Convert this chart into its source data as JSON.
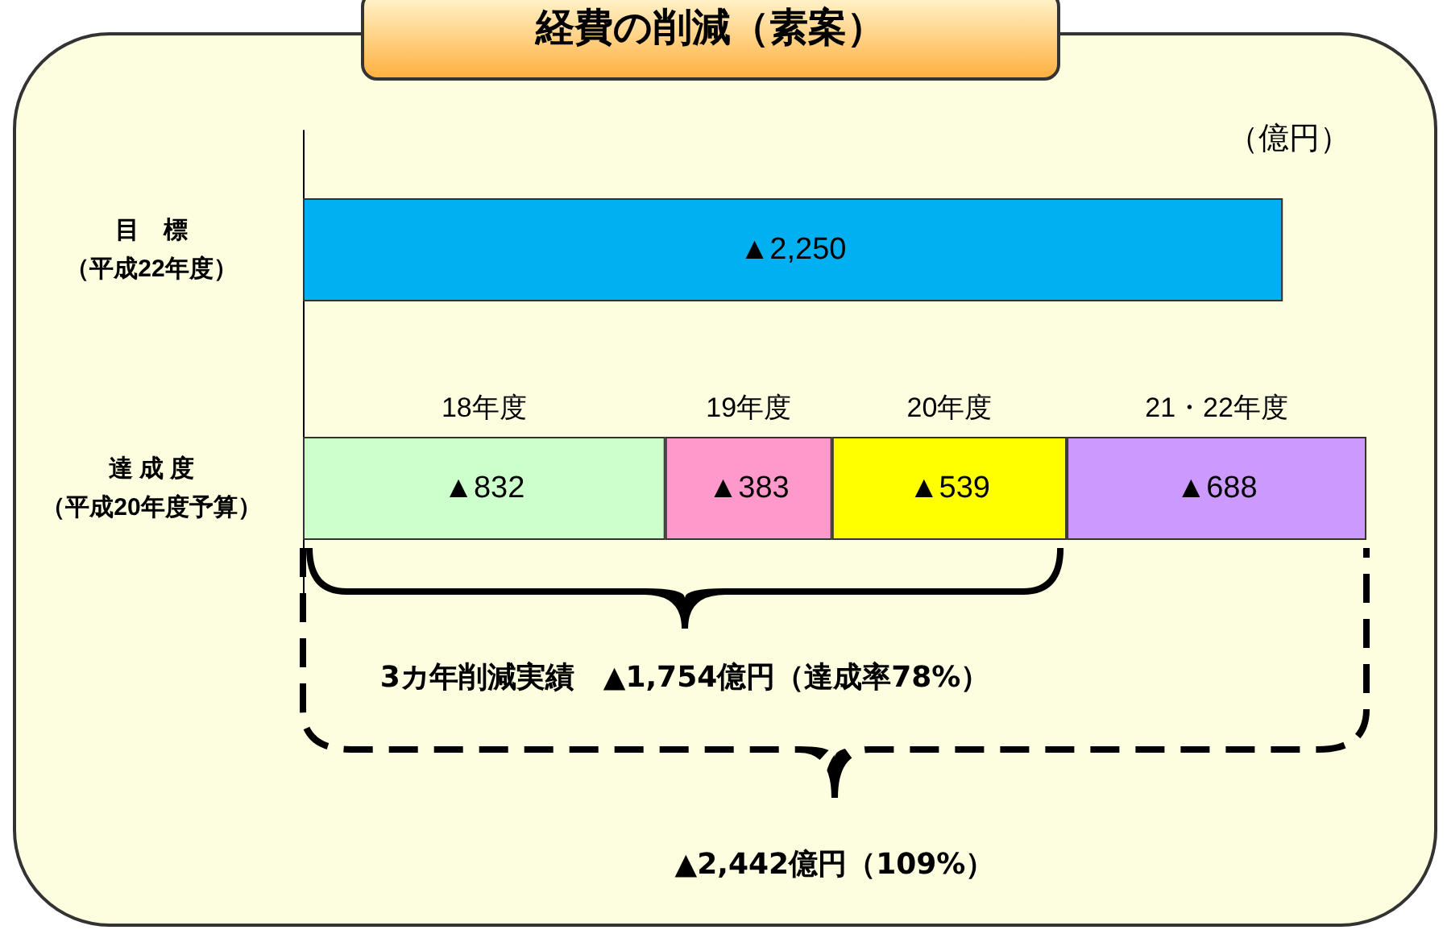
{
  "chart_data": {
    "type": "bar",
    "orientation": "horizontal",
    "stacked": true,
    "title": "経費の削減（素案）",
    "categories": [
      "目　標（平成22年度）",
      "達 成 度（平成20年度予算）"
    ],
    "series": [
      {
        "color": "#00b0f0",
        "values": [
          2250,
          null
        ],
        "value_labels": [
          "▲2,250",
          null
        ]
      },
      {
        "name": "18年度",
        "color": "#ccffcc",
        "values": [
          null,
          832
        ],
        "value_labels": [
          null,
          "▲832"
        ]
      },
      {
        "name": "19年度",
        "color": "#ff99cc",
        "values": [
          null,
          383
        ],
        "value_labels": [
          null,
          "▲383"
        ]
      },
      {
        "name": "20年度",
        "color": "#ffff00",
        "values": [
          null,
          539
        ],
        "value_labels": [
          null,
          "▲539"
        ]
      },
      {
        "name": "21・22年度",
        "color": "#cc99ff",
        "values": [
          null,
          688
        ],
        "value_labels": [
          null,
          "▲688"
        ]
      }
    ],
    "annotations": [
      "（億円）",
      "3カ年削減実績　▲1,754億円（達成率78%）",
      "▲2,442億円（109%）"
    ],
    "legend": false
  }
}
